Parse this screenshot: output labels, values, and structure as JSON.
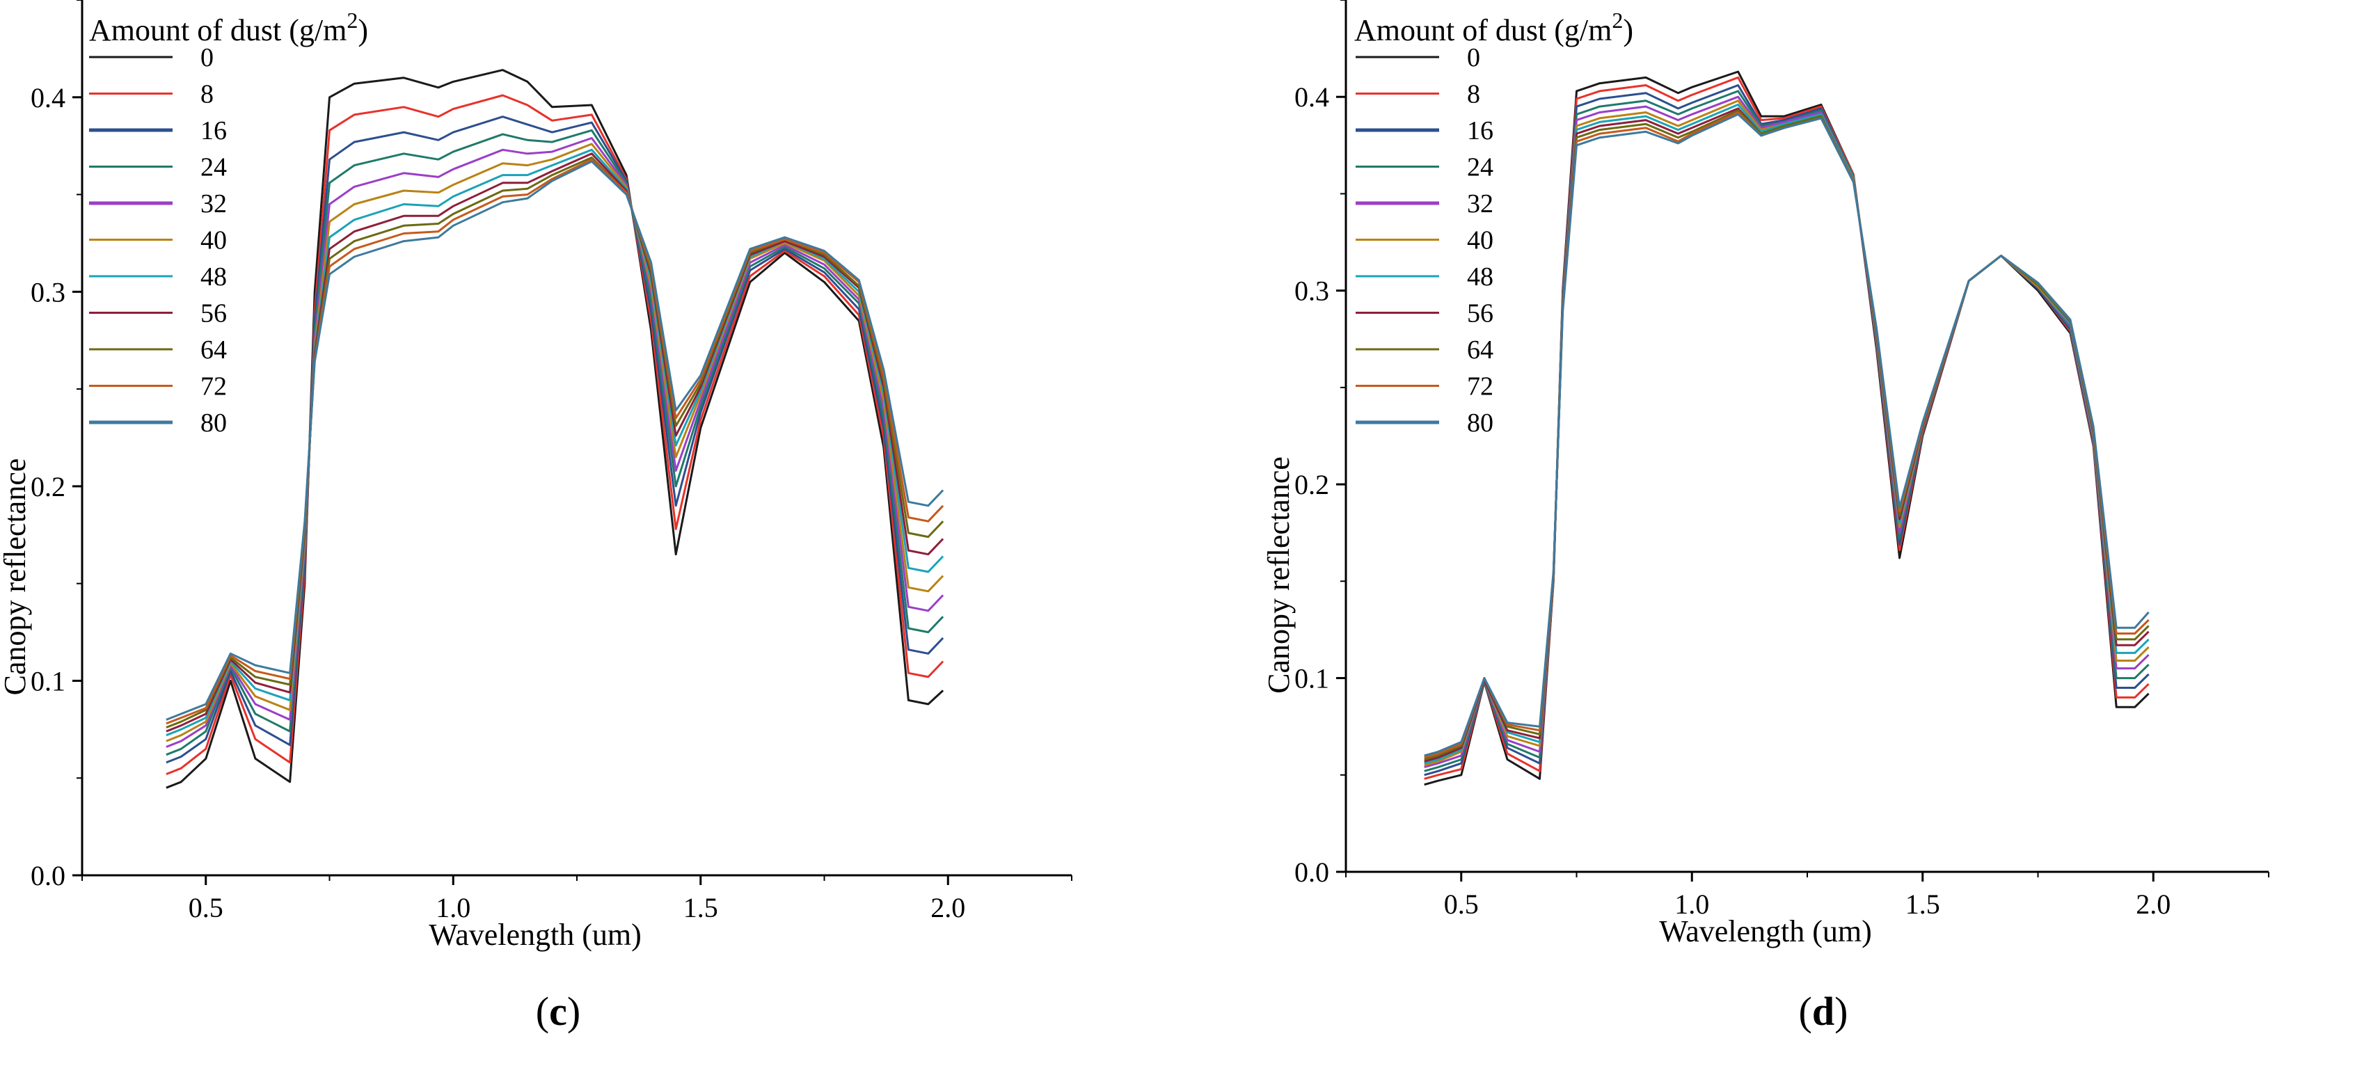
{
  "chart_data": [
    {
      "type": "line",
      "panel": "c",
      "caption_open": "(",
      "caption_letter": "c",
      "caption_close": ")",
      "xlabel": "Wavelength (um)",
      "ylabel": "Canopy reflectance",
      "xlim": [
        0.25,
        2.25
      ],
      "ylim": [
        0.0,
        0.45
      ],
      "xticks": [
        "0.5",
        "1.0",
        "1.5",
        "2.0"
      ],
      "yticks": [
        "0.0",
        "0.1",
        "0.2",
        "0.3",
        "0.4"
      ],
      "legend_title": "Amount of dust (g/m",
      "legend_title_sup": "2",
      "legend_title_close": ")",
      "legend_position": "top-left",
      "x": [
        0.42,
        0.45,
        0.5,
        0.55,
        0.6,
        0.67,
        0.7,
        0.72,
        0.75,
        0.8,
        0.9,
        0.97,
        1.0,
        1.1,
        1.15,
        1.2,
        1.28,
        1.35,
        1.4,
        1.45,
        1.5,
        1.6,
        1.67,
        1.75,
        1.82,
        1.87,
        1.92,
        1.96,
        1.99
      ],
      "series": [
        {
          "name": "0",
          "color": "#1a1a1a",
          "values": [
            0.045,
            0.048,
            0.06,
            0.1,
            0.06,
            0.048,
            0.15,
            0.3,
            0.4,
            0.407,
            0.41,
            0.405,
            0.408,
            0.414,
            0.408,
            0.395,
            0.396,
            0.36,
            0.28,
            0.165,
            0.23,
            0.305,
            0.32,
            0.305,
            0.285,
            0.22,
            0.09,
            0.088,
            0.095
          ]
        },
        {
          "name": "8",
          "color": "#e8322b",
          "values": [
            0.052,
            0.055,
            0.065,
            0.103,
            0.07,
            0.058,
            0.155,
            0.29,
            0.383,
            0.391,
            0.395,
            0.39,
            0.394,
            0.401,
            0.396,
            0.388,
            0.391,
            0.358,
            0.285,
            0.178,
            0.234,
            0.308,
            0.321,
            0.308,
            0.288,
            0.225,
            0.104,
            0.102,
            0.11
          ]
        },
        {
          "name": "16",
          "color": "#2c4f8f",
          "values": [
            0.058,
            0.061,
            0.07,
            0.105,
            0.077,
            0.067,
            0.16,
            0.285,
            0.368,
            0.377,
            0.382,
            0.378,
            0.382,
            0.39,
            0.386,
            0.382,
            0.387,
            0.357,
            0.29,
            0.19,
            0.238,
            0.311,
            0.322,
            0.31,
            0.291,
            0.23,
            0.116,
            0.114,
            0.122
          ]
        },
        {
          "name": "24",
          "color": "#1f7a6a",
          "values": [
            0.062,
            0.065,
            0.074,
            0.107,
            0.083,
            0.074,
            0.165,
            0.28,
            0.356,
            0.365,
            0.371,
            0.368,
            0.372,
            0.381,
            0.378,
            0.377,
            0.383,
            0.356,
            0.295,
            0.2,
            0.241,
            0.313,
            0.323,
            0.312,
            0.294,
            0.235,
            0.127,
            0.125,
            0.133
          ]
        },
        {
          "name": "32",
          "color": "#9b3fc7",
          "values": [
            0.066,
            0.069,
            0.077,
            0.108,
            0.088,
            0.08,
            0.168,
            0.275,
            0.345,
            0.354,
            0.361,
            0.359,
            0.363,
            0.373,
            0.371,
            0.372,
            0.379,
            0.355,
            0.3,
            0.208,
            0.244,
            0.315,
            0.324,
            0.314,
            0.296,
            0.24,
            0.138,
            0.136,
            0.144
          ]
        },
        {
          "name": "40",
          "color": "#b98314",
          "values": [
            0.069,
            0.072,
            0.079,
            0.109,
            0.092,
            0.085,
            0.171,
            0.272,
            0.336,
            0.345,
            0.352,
            0.351,
            0.355,
            0.366,
            0.365,
            0.368,
            0.376,
            0.354,
            0.303,
            0.215,
            0.247,
            0.317,
            0.325,
            0.316,
            0.298,
            0.244,
            0.148,
            0.146,
            0.154
          ]
        },
        {
          "name": "48",
          "color": "#1aa3b8",
          "values": [
            0.072,
            0.075,
            0.081,
            0.11,
            0.096,
            0.09,
            0.174,
            0.27,
            0.328,
            0.337,
            0.345,
            0.344,
            0.349,
            0.36,
            0.36,
            0.365,
            0.373,
            0.353,
            0.306,
            0.221,
            0.249,
            0.318,
            0.326,
            0.317,
            0.3,
            0.248,
            0.158,
            0.156,
            0.164
          ]
        },
        {
          "name": "56",
          "color": "#8e1f3b",
          "values": [
            0.074,
            0.077,
            0.083,
            0.111,
            0.099,
            0.094,
            0.176,
            0.268,
            0.322,
            0.331,
            0.339,
            0.339,
            0.344,
            0.356,
            0.356,
            0.362,
            0.371,
            0.352,
            0.309,
            0.226,
            0.251,
            0.319,
            0.326,
            0.318,
            0.302,
            0.251,
            0.167,
            0.165,
            0.173
          ]
        },
        {
          "name": "64",
          "color": "#6b6a12",
          "values": [
            0.076,
            0.079,
            0.085,
            0.112,
            0.102,
            0.098,
            0.178,
            0.266,
            0.317,
            0.326,
            0.334,
            0.335,
            0.34,
            0.352,
            0.353,
            0.36,
            0.369,
            0.351,
            0.311,
            0.231,
            0.253,
            0.32,
            0.327,
            0.319,
            0.303,
            0.254,
            0.176,
            0.174,
            0.182
          ]
        },
        {
          "name": "72",
          "color": "#c55a1c",
          "values": [
            0.078,
            0.081,
            0.086,
            0.113,
            0.105,
            0.101,
            0.18,
            0.265,
            0.313,
            0.322,
            0.33,
            0.331,
            0.337,
            0.349,
            0.35,
            0.358,
            0.368,
            0.351,
            0.313,
            0.235,
            0.255,
            0.321,
            0.327,
            0.32,
            0.305,
            0.257,
            0.184,
            0.182,
            0.19
          ]
        },
        {
          "name": "80",
          "color": "#3d7a9e",
          "values": [
            0.08,
            0.083,
            0.088,
            0.114,
            0.108,
            0.104,
            0.182,
            0.264,
            0.309,
            0.318,
            0.326,
            0.328,
            0.334,
            0.346,
            0.348,
            0.357,
            0.367,
            0.35,
            0.315,
            0.239,
            0.257,
            0.322,
            0.328,
            0.321,
            0.306,
            0.26,
            0.192,
            0.19,
            0.198
          ]
        }
      ]
    },
    {
      "type": "line",
      "panel": "d",
      "caption_open": "(",
      "caption_letter": "d",
      "caption_close": ")",
      "xlabel": "Wavelength (um)",
      "ylabel": "Canopy reflectance",
      "xlim": [
        0.25,
        2.25
      ],
      "ylim": [
        0.0,
        0.45
      ],
      "xticks": [
        "0.5",
        "1.0",
        "1.5",
        "2.0"
      ],
      "yticks": [
        "0.0",
        "0.1",
        "0.2",
        "0.3",
        "0.4"
      ],
      "legend_title": "Amount of dust (g/m",
      "legend_title_sup": "2",
      "legend_title_close": ")",
      "legend_position": "top-left",
      "x": [
        0.42,
        0.45,
        0.5,
        0.55,
        0.6,
        0.67,
        0.7,
        0.72,
        0.75,
        0.8,
        0.9,
        0.97,
        1.0,
        1.1,
        1.15,
        1.2,
        1.28,
        1.35,
        1.4,
        1.45,
        1.5,
        1.6,
        1.67,
        1.75,
        1.82,
        1.87,
        1.92,
        1.96,
        1.99
      ],
      "series": [
        {
          "name": "0",
          "color": "#1a1a1a",
          "values": [
            0.045,
            0.047,
            0.05,
            0.098,
            0.058,
            0.048,
            0.15,
            0.3,
            0.403,
            0.407,
            0.41,
            0.402,
            0.405,
            0.413,
            0.39,
            0.39,
            0.396,
            0.36,
            0.27,
            0.162,
            0.225,
            0.305,
            0.318,
            0.3,
            0.278,
            0.22,
            0.085,
            0.085,
            0.092
          ]
        },
        {
          "name": "8",
          "color": "#e8322b",
          "values": [
            0.048,
            0.05,
            0.053,
            0.098,
            0.061,
            0.052,
            0.15,
            0.298,
            0.399,
            0.403,
            0.406,
            0.398,
            0.401,
            0.41,
            0.388,
            0.389,
            0.395,
            0.36,
            0.272,
            0.166,
            0.226,
            0.305,
            0.318,
            0.301,
            0.279,
            0.221,
            0.09,
            0.09,
            0.097
          ]
        },
        {
          "name": "16",
          "color": "#2c4f8f",
          "values": [
            0.05,
            0.052,
            0.056,
            0.098,
            0.064,
            0.056,
            0.151,
            0.297,
            0.395,
            0.399,
            0.402,
            0.394,
            0.397,
            0.406,
            0.386,
            0.388,
            0.394,
            0.359,
            0.273,
            0.169,
            0.227,
            0.305,
            0.318,
            0.301,
            0.28,
            0.222,
            0.095,
            0.095,
            0.102
          ]
        },
        {
          "name": "24",
          "color": "#1f7a6a",
          "values": [
            0.052,
            0.054,
            0.058,
            0.098,
            0.066,
            0.059,
            0.151,
            0.296,
            0.391,
            0.395,
            0.398,
            0.391,
            0.394,
            0.403,
            0.385,
            0.387,
            0.393,
            0.359,
            0.274,
            0.172,
            0.228,
            0.305,
            0.318,
            0.302,
            0.281,
            0.223,
            0.1,
            0.1,
            0.107
          ]
        },
        {
          "name": "32",
          "color": "#9b3fc7",
          "values": [
            0.054,
            0.056,
            0.06,
            0.099,
            0.068,
            0.062,
            0.152,
            0.295,
            0.388,
            0.392,
            0.395,
            0.388,
            0.391,
            0.4,
            0.384,
            0.387,
            0.392,
            0.358,
            0.275,
            0.175,
            0.229,
            0.305,
            0.318,
            0.302,
            0.282,
            0.224,
            0.105,
            0.105,
            0.112
          ]
        },
        {
          "name": "40",
          "color": "#b98314",
          "values": [
            0.055,
            0.057,
            0.062,
            0.099,
            0.07,
            0.065,
            0.152,
            0.294,
            0.385,
            0.389,
            0.392,
            0.385,
            0.388,
            0.398,
            0.383,
            0.386,
            0.391,
            0.358,
            0.276,
            0.178,
            0.229,
            0.305,
            0.318,
            0.302,
            0.283,
            0.225,
            0.109,
            0.109,
            0.116
          ]
        },
        {
          "name": "48",
          "color": "#1aa3b8",
          "values": [
            0.056,
            0.058,
            0.063,
            0.099,
            0.072,
            0.067,
            0.153,
            0.293,
            0.383,
            0.387,
            0.39,
            0.383,
            0.386,
            0.396,
            0.382,
            0.386,
            0.391,
            0.358,
            0.277,
            0.18,
            0.23,
            0.305,
            0.318,
            0.303,
            0.283,
            0.226,
            0.113,
            0.113,
            0.12
          ]
        },
        {
          "name": "56",
          "color": "#8e1f3b",
          "values": [
            0.057,
            0.059,
            0.064,
            0.099,
            0.073,
            0.069,
            0.153,
            0.292,
            0.381,
            0.385,
            0.388,
            0.381,
            0.384,
            0.394,
            0.381,
            0.385,
            0.39,
            0.357,
            0.278,
            0.182,
            0.23,
            0.305,
            0.318,
            0.303,
            0.284,
            0.227,
            0.117,
            0.117,
            0.124
          ]
        },
        {
          "name": "64",
          "color": "#6b6a12",
          "values": [
            0.058,
            0.06,
            0.065,
            0.1,
            0.075,
            0.071,
            0.154,
            0.291,
            0.379,
            0.383,
            0.386,
            0.379,
            0.382,
            0.393,
            0.381,
            0.385,
            0.39,
            0.357,
            0.279,
            0.184,
            0.231,
            0.305,
            0.318,
            0.303,
            0.284,
            0.228,
            0.12,
            0.12,
            0.127
          ]
        },
        {
          "name": "72",
          "color": "#c55a1c",
          "values": [
            0.059,
            0.061,
            0.066,
            0.1,
            0.076,
            0.073,
            0.154,
            0.29,
            0.377,
            0.381,
            0.384,
            0.377,
            0.381,
            0.392,
            0.38,
            0.384,
            0.389,
            0.357,
            0.28,
            0.186,
            0.231,
            0.305,
            0.318,
            0.304,
            0.285,
            0.229,
            0.123,
            0.123,
            0.13
          ]
        },
        {
          "name": "80",
          "color": "#3d7a9e",
          "values": [
            0.06,
            0.062,
            0.067,
            0.1,
            0.077,
            0.075,
            0.155,
            0.289,
            0.375,
            0.379,
            0.382,
            0.376,
            0.38,
            0.391,
            0.38,
            0.384,
            0.389,
            0.356,
            0.281,
            0.188,
            0.232,
            0.305,
            0.318,
            0.304,
            0.285,
            0.23,
            0.126,
            0.126,
            0.134
          ]
        }
      ]
    }
  ]
}
